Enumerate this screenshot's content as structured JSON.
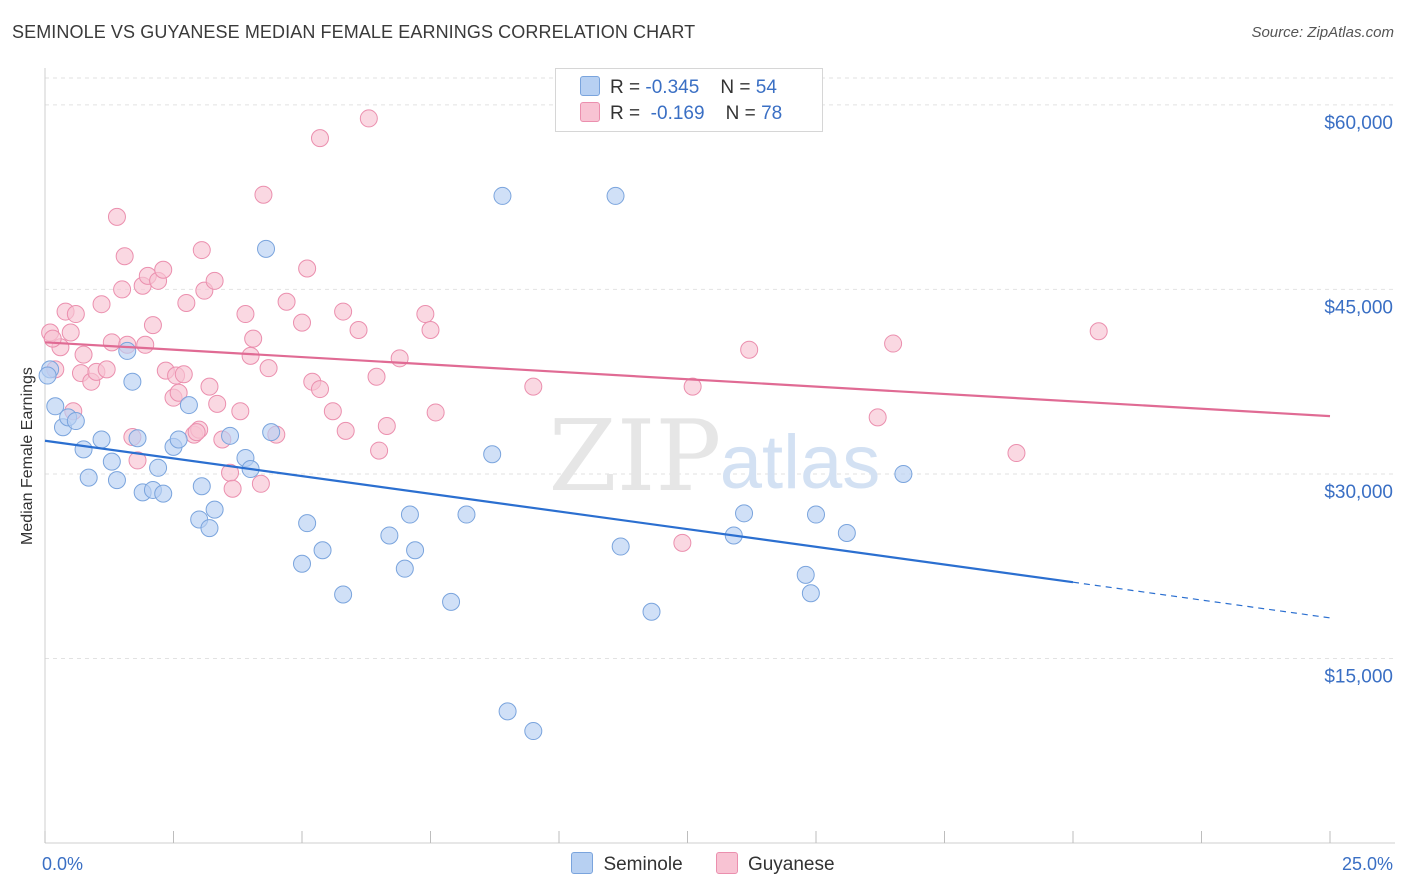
{
  "header": {
    "title": "SEMINOLE VS GUYANESE MEDIAN FEMALE EARNINGS CORRELATION CHART",
    "source": "Source: ZipAtlas.com"
  },
  "watermark": {
    "zip": "ZIP",
    "atlas": "atlas"
  },
  "colors": {
    "seminole_fill": "#b7d0f2",
    "seminole_stroke": "#7aa4dd",
    "seminole_line": "#2b6fd0",
    "guyanese_fill": "#f8c3d3",
    "guyanese_stroke": "#eb8fae",
    "guyanese_line": "#e06b94",
    "tick_text": "#3a6fc4",
    "grid": "#e2e2e2"
  },
  "legend": {
    "rows": [
      {
        "r_label": "R =",
        "r_value": "-0.345",
        "n_label": "N =",
        "n_value": "54"
      },
      {
        "r_label": "R =",
        "r_value": "-0.169",
        "n_label": "N =",
        "n_value": "78"
      }
    ]
  },
  "chart_data": {
    "type": "scatter",
    "title": "SEMINOLE VS GUYANESE MEDIAN FEMALE EARNINGS CORRELATION CHART",
    "xlabel": "",
    "ylabel": "Median Female Earnings",
    "xlim": [
      0,
      25
    ],
    "ylim": [
      0,
      63000
    ],
    "x_tick_labels": [
      {
        "value": 0,
        "label": "0.0%"
      },
      {
        "value": 25,
        "label": "25.0%"
      }
    ],
    "y_tick_labels": [
      {
        "value": 15000,
        "label": "$15,000"
      },
      {
        "value": 30000,
        "label": "$30,000"
      },
      {
        "value": 45000,
        "label": "$45,000"
      },
      {
        "value": 60000,
        "label": "$60,000"
      }
    ],
    "grid": true,
    "legend_position": "top-center",
    "series": [
      {
        "name": "Seminole",
        "r": -0.345,
        "n": 54,
        "trend": {
          "x0": 0,
          "y0": 32700,
          "x1": 20,
          "y1": 21200,
          "dashed_to_x": 25,
          "dashed_y": 18300
        },
        "points": [
          [
            0.1,
            38500
          ],
          [
            0.2,
            35500
          ],
          [
            0.35,
            33800
          ],
          [
            0.45,
            34600
          ],
          [
            0.6,
            34300
          ],
          [
            0.75,
            32000
          ],
          [
            0.85,
            29700
          ],
          [
            1.1,
            32800
          ],
          [
            1.3,
            31000
          ],
          [
            1.4,
            29500
          ],
          [
            1.6,
            40000
          ],
          [
            1.7,
            37500
          ],
          [
            1.8,
            32900
          ],
          [
            1.9,
            28500
          ],
          [
            2.1,
            28700
          ],
          [
            2.2,
            30500
          ],
          [
            2.3,
            28400
          ],
          [
            2.5,
            32200
          ],
          [
            2.6,
            32800
          ],
          [
            2.8,
            35600
          ],
          [
            3.0,
            26300
          ],
          [
            3.05,
            29000
          ],
          [
            3.2,
            25600
          ],
          [
            3.3,
            27100
          ],
          [
            3.6,
            33100
          ],
          [
            3.9,
            31300
          ],
          [
            4.0,
            30400
          ],
          [
            4.3,
            48300
          ],
          [
            4.4,
            33400
          ],
          [
            5.0,
            22700
          ],
          [
            5.1,
            26000
          ],
          [
            5.4,
            23800
          ],
          [
            5.8,
            20200
          ],
          [
            6.7,
            25000
          ],
          [
            7.0,
            22300
          ],
          [
            7.1,
            26700
          ],
          [
            7.2,
            23800
          ],
          [
            7.9,
            19600
          ],
          [
            8.2,
            26700
          ],
          [
            8.7,
            31600
          ],
          [
            8.9,
            52600
          ],
          [
            9.0,
            10700
          ],
          [
            9.5,
            9100
          ],
          [
            11.1,
            52600
          ],
          [
            11.2,
            24100
          ],
          [
            11.8,
            18800
          ],
          [
            13.4,
            25000
          ],
          [
            13.6,
            26800
          ],
          [
            14.8,
            21800
          ],
          [
            14.9,
            20300
          ],
          [
            15.0,
            26700
          ],
          [
            15.6,
            25200
          ],
          [
            16.7,
            30000
          ],
          [
            0.05,
            38000
          ]
        ]
      },
      {
        "name": "Guyanese",
        "r": -0.169,
        "n": 78,
        "trend": {
          "x0": 0,
          "y0": 40700,
          "x1": 25,
          "y1": 34700
        },
        "points": [
          [
            0.1,
            41500
          ],
          [
            0.2,
            38500
          ],
          [
            0.3,
            40300
          ],
          [
            0.4,
            43200
          ],
          [
            0.5,
            41500
          ],
          [
            0.55,
            35100
          ],
          [
            0.6,
            43000
          ],
          [
            0.7,
            38200
          ],
          [
            0.75,
            39700
          ],
          [
            0.9,
            37500
          ],
          [
            1.0,
            38300
          ],
          [
            1.1,
            43800
          ],
          [
            1.2,
            38500
          ],
          [
            1.3,
            40700
          ],
          [
            1.4,
            50900
          ],
          [
            1.5,
            45000
          ],
          [
            1.55,
            47700
          ],
          [
            1.6,
            40500
          ],
          [
            1.7,
            33000
          ],
          [
            1.8,
            31100
          ],
          [
            1.9,
            45300
          ],
          [
            1.95,
            40500
          ],
          [
            2.0,
            46100
          ],
          [
            2.1,
            42100
          ],
          [
            2.2,
            45700
          ],
          [
            2.3,
            46600
          ],
          [
            2.35,
            38400
          ],
          [
            2.5,
            36200
          ],
          [
            2.55,
            38000
          ],
          [
            2.6,
            36600
          ],
          [
            2.7,
            38100
          ],
          [
            2.75,
            43900
          ],
          [
            2.9,
            33200
          ],
          [
            3.0,
            33600
          ],
          [
            3.05,
            48200
          ],
          [
            3.1,
            44900
          ],
          [
            3.2,
            37100
          ],
          [
            3.3,
            45700
          ],
          [
            3.35,
            35700
          ],
          [
            3.45,
            32800
          ],
          [
            3.6,
            30100
          ],
          [
            3.65,
            28800
          ],
          [
            3.8,
            35100
          ],
          [
            3.9,
            43000
          ],
          [
            4.0,
            39600
          ],
          [
            4.05,
            41000
          ],
          [
            4.2,
            29200
          ],
          [
            4.25,
            52700
          ],
          [
            4.35,
            38600
          ],
          [
            4.5,
            33200
          ],
          [
            4.7,
            44000
          ],
          [
            5.0,
            42300
          ],
          [
            5.1,
            46700
          ],
          [
            5.2,
            37500
          ],
          [
            5.35,
            36900
          ],
          [
            5.6,
            35100
          ],
          [
            5.8,
            43200
          ],
          [
            5.85,
            33500
          ],
          [
            6.1,
            41700
          ],
          [
            6.3,
            58900
          ],
          [
            6.45,
            37900
          ],
          [
            6.5,
            31900
          ],
          [
            6.65,
            33900
          ],
          [
            6.9,
            39400
          ],
          [
            7.4,
            43000
          ],
          [
            7.5,
            41700
          ],
          [
            7.6,
            35000
          ],
          [
            5.35,
            57300
          ],
          [
            9.5,
            37100
          ],
          [
            12.4,
            24400
          ],
          [
            12.6,
            37100
          ],
          [
            13.7,
            40100
          ],
          [
            16.2,
            34600
          ],
          [
            16.5,
            40600
          ],
          [
            18.9,
            31700
          ],
          [
            20.5,
            41600
          ],
          [
            2.95,
            33400
          ],
          [
            0.15,
            41000
          ]
        ]
      }
    ]
  },
  "bottom_legend": [
    "Seminole",
    "Guyanese"
  ]
}
